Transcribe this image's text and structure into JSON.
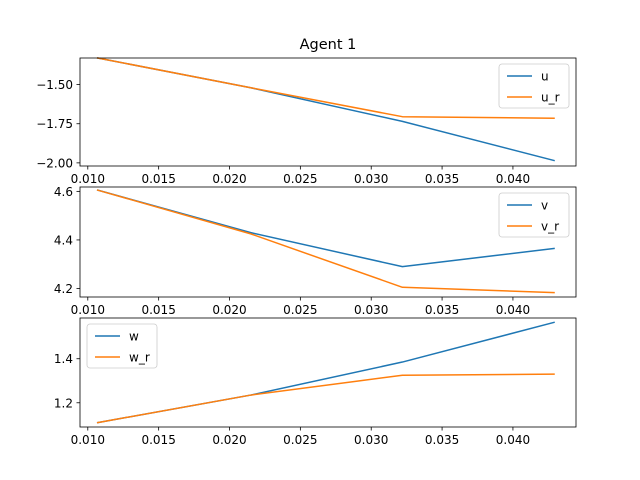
{
  "chart_data": [
    {
      "type": "line",
      "title": "Agent 1",
      "xlabel": "",
      "ylabel": "",
      "xlim": [
        0.00945,
        0.04445
      ],
      "ylim": [
        -2.02,
        -1.33
      ],
      "xticks": [
        0.01,
        0.015,
        0.02,
        0.025,
        0.03,
        0.035,
        0.04
      ],
      "xtick_labels": [
        "0.010",
        "0.015",
        "0.020",
        "0.025",
        "0.030",
        "0.035",
        "0.040"
      ],
      "yticks": [
        -1.5,
        -1.75,
        -2.0
      ],
      "ytick_labels": [
        "−1.50",
        "−1.75",
        "−2.00"
      ],
      "legend_position": "upper right",
      "grid": false,
      "series": [
        {
          "name": "u",
          "color": "#1f77b4",
          "x": [
            0.0107,
            0.0215,
            0.0322,
            0.0429
          ],
          "y": [
            -1.33,
            -1.52,
            -1.735,
            -1.985
          ]
        },
        {
          "name": "u_r",
          "color": "#ff7f0e",
          "x": [
            0.0107,
            0.0215,
            0.0322,
            0.0429
          ],
          "y": [
            -1.33,
            -1.52,
            -1.705,
            -1.715
          ]
        }
      ]
    },
    {
      "type": "line",
      "title": "",
      "xlabel": "",
      "ylabel": "",
      "xlim": [
        0.00945,
        0.04445
      ],
      "ylim": [
        4.165,
        4.618
      ],
      "xticks": [
        0.01,
        0.015,
        0.02,
        0.025,
        0.03,
        0.035,
        0.04
      ],
      "xtick_labels": [
        "0.010",
        "0.015",
        "0.020",
        "0.025",
        "0.030",
        "0.035",
        "0.040"
      ],
      "yticks": [
        4.6,
        4.4,
        4.2
      ],
      "ytick_labels": [
        "4.6",
        "4.4",
        "4.2"
      ],
      "legend_position": "upper right",
      "grid": false,
      "series": [
        {
          "name": "v",
          "color": "#1f77b4",
          "x": [
            0.0107,
            0.0215,
            0.0322,
            0.0429
          ],
          "y": [
            4.605,
            4.43,
            4.29,
            4.365
          ]
        },
        {
          "name": "v_r",
          "color": "#ff7f0e",
          "x": [
            0.0107,
            0.0215,
            0.0322,
            0.0429
          ],
          "y": [
            4.605,
            4.425,
            4.205,
            4.183
          ]
        }
      ]
    },
    {
      "type": "line",
      "title": "",
      "xlabel": "",
      "ylabel": "",
      "xlim": [
        0.00945,
        0.04445
      ],
      "ylim": [
        1.09,
        1.585
      ],
      "xticks": [
        0.01,
        0.015,
        0.02,
        0.025,
        0.03,
        0.035,
        0.04
      ],
      "xtick_labels": [
        "0.010",
        "0.015",
        "0.020",
        "0.025",
        "0.030",
        "0.035",
        "0.040"
      ],
      "yticks": [
        1.4,
        1.2
      ],
      "ytick_labels": [
        "1.4",
        "1.2"
      ],
      "legend_position": "upper left",
      "grid": false,
      "series": [
        {
          "name": "w",
          "color": "#1f77b4",
          "x": [
            0.0107,
            0.0215,
            0.0322,
            0.0429
          ],
          "y": [
            1.11,
            1.235,
            1.385,
            1.565
          ]
        },
        {
          "name": "w_r",
          "color": "#ff7f0e",
          "x": [
            0.0107,
            0.0215,
            0.0322,
            0.0429
          ],
          "y": [
            1.11,
            1.235,
            1.325,
            1.33
          ]
        }
      ]
    }
  ]
}
